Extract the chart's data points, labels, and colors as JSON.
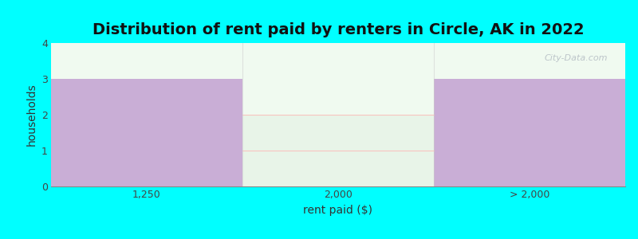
{
  "title": "Distribution of rent paid by renters in Circle, AK in 2022",
  "categories": [
    "1,250",
    "2,000",
    "> 2,000"
  ],
  "values": [
    3,
    2,
    3
  ],
  "bar_colors": [
    "#c9aed6",
    "#e8f4e8",
    "#c9aed6"
  ],
  "xlabel": "rent paid ($)",
  "ylabel": "households",
  "ylim": [
    0,
    4
  ],
  "yticks": [
    0,
    1,
    2,
    3,
    4
  ],
  "background_color": "#00ffff",
  "plot_bg_color": "#f0faf0",
  "title_fontsize": 14,
  "axis_label_fontsize": 10,
  "tick_fontsize": 9,
  "watermark": "City-Data.com"
}
